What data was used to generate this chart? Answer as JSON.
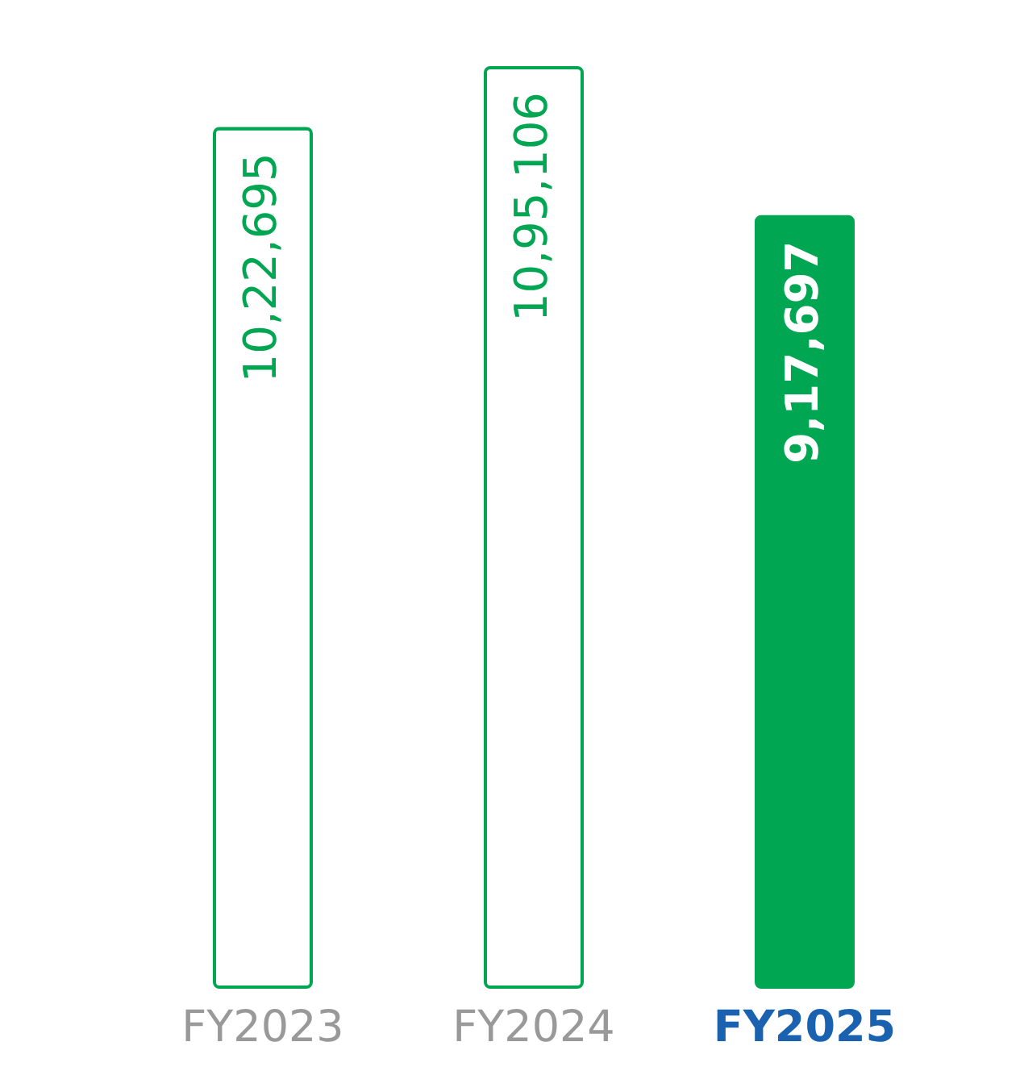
{
  "chart_data": {
    "type": "bar",
    "categories": [
      "FY2023",
      "FY2024",
      "FY2025"
    ],
    "values": [
      1022695,
      1095106,
      917697
    ],
    "value_labels": [
      "10,22,695",
      "10,95,106",
      "9,17,697"
    ],
    "color": "#00a651",
    "colors": [
      "#ffffff",
      "#ffffff",
      "#00a651"
    ]
  }
}
